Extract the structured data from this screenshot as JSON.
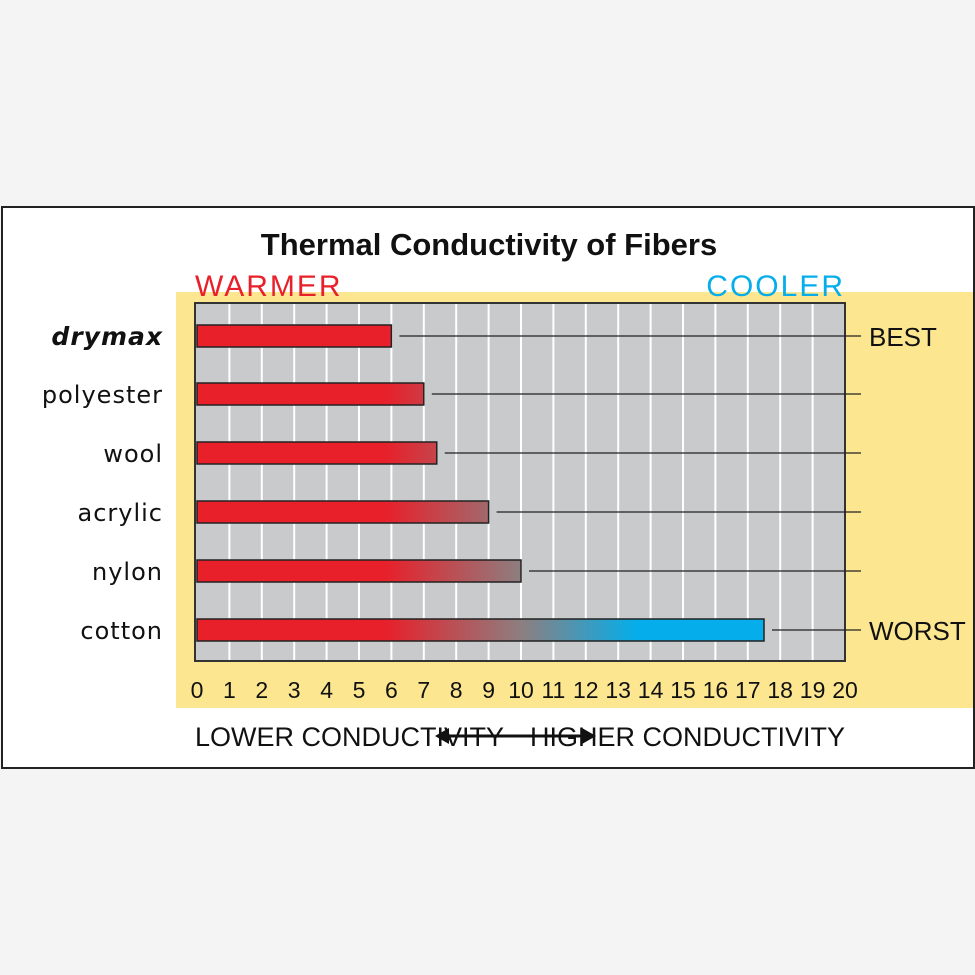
{
  "chart_data": {
    "type": "bar",
    "orientation": "horizontal",
    "title": "Thermal Conductivity of Fibers",
    "left_header": "WARMER",
    "right_header": "COOLER",
    "categories": [
      "drymax",
      "polyester",
      "wool",
      "acrylic",
      "nylon",
      "cotton"
    ],
    "values": [
      6.0,
      7.0,
      7.4,
      9.0,
      10.0,
      17.5
    ],
    "right_labels": [
      "BEST",
      "",
      "",
      "",
      "",
      "WORST"
    ],
    "x_ticks": [
      "0",
      "1",
      "2",
      "3",
      "4",
      "5",
      "6",
      "7",
      "8",
      "9",
      "10",
      "11",
      "12",
      "13",
      "14",
      "15",
      "16",
      "17",
      "18",
      "19",
      "20"
    ],
    "xlim": [
      0,
      20
    ],
    "grid": true,
    "xlabel_left": "LOWER CONDUCTIVITY",
    "xlabel_right": "HIGHER CONDUCTIVITY",
    "colors": {
      "warm": "#e8202a",
      "cool": "#05aeea",
      "mid": "#8c7f80",
      "plot_bg": "#c9cacc",
      "highlight_bg": "#fce690"
    }
  }
}
